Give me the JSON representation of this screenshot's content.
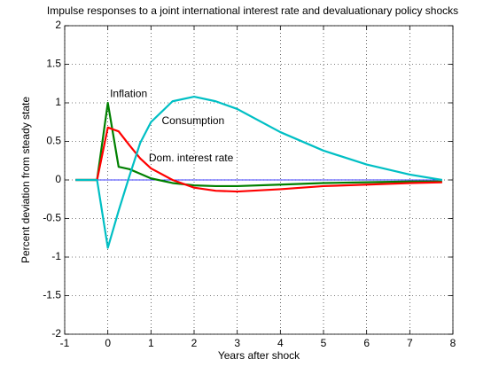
{
  "chart_data": {
    "type": "line",
    "title": "Impulse responses to a joint international interest rate and devaluationary policy shocks",
    "x_label": "Years after shock",
    "y_label": "Percent deviation from steady state",
    "x": [
      -0.75,
      -0.25,
      0,
      0.25,
      0.5,
      0.75,
      1,
      1.5,
      2,
      2.5,
      3,
      4,
      5,
      6,
      7,
      7.75
    ],
    "series": [
      {
        "color": "#0000ff",
        "width": 0.8,
        "values": [
          0,
          0,
          0,
          0,
          0,
          0,
          0,
          0,
          0,
          0,
          0,
          0,
          0,
          0,
          0,
          0
        ]
      },
      {
        "name": "Inflation",
        "color": "#008000",
        "width": 2.2,
        "values": [
          0,
          0,
          1.0,
          0.17,
          0.14,
          0.08,
          0.02,
          -0.04,
          -0.07,
          -0.08,
          -0.08,
          -0.06,
          -0.04,
          -0.03,
          -0.02,
          -0.02
        ]
      },
      {
        "name": "Dom. interest rate",
        "color": "#ff0000",
        "width": 2.2,
        "values": [
          0,
          0,
          0.68,
          0.63,
          0.45,
          0.28,
          0.15,
          0,
          -0.1,
          -0.14,
          -0.15,
          -0.12,
          -0.08,
          -0.06,
          -0.04,
          -0.03
        ]
      },
      {
        "name": "Consumption",
        "color": "#00bfc4",
        "width": 2.2,
        "values": [
          0,
          0,
          -0.88,
          -0.4,
          0.05,
          0.48,
          0.75,
          1.02,
          1.08,
          1.02,
          0.92,
          0.62,
          0.38,
          0.2,
          0.07,
          0.0
        ]
      }
    ],
    "annotations": [
      {
        "text": "Inflation",
        "x": 0.05,
        "y": 1.11
      },
      {
        "text": "Consumption",
        "x": 1.25,
        "y": 0.76
      },
      {
        "text": "Dom. interest rate",
        "x": 0.95,
        "y": 0.28
      }
    ],
    "xlim": [
      -1,
      8
    ],
    "xticks": [
      -1,
      0,
      1,
      2,
      3,
      4,
      5,
      6,
      7,
      8
    ],
    "ylim": [
      -2,
      2
    ],
    "yticks": [
      -2,
      -1.5,
      -1,
      -0.5,
      0,
      0.5,
      1,
      1.5,
      2
    ],
    "grid": true
  }
}
